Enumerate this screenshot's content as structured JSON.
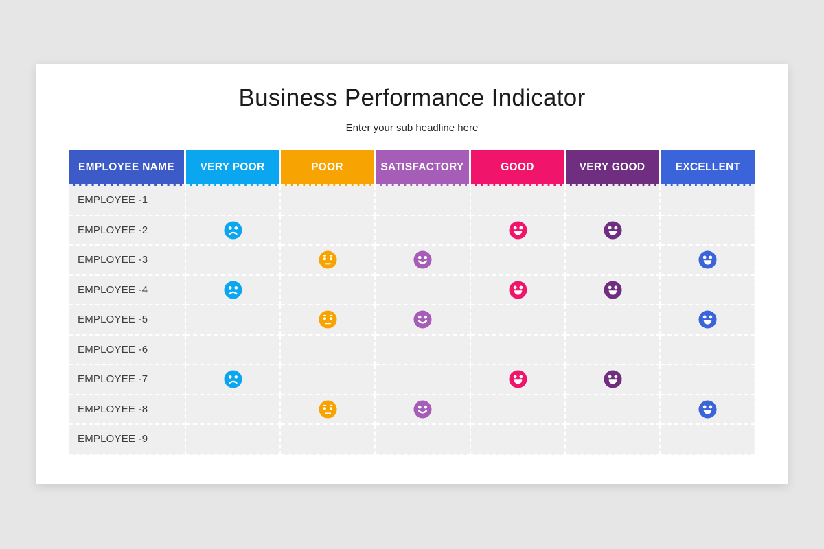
{
  "page": {
    "background_color": "#e7e6e7",
    "card_color": "#ffffff"
  },
  "chart_data": {
    "type": "table",
    "title": "Business Performance Indicator",
    "subtitle": "Enter your sub headline here",
    "legend": {
      "sad": "negative rating face",
      "neutral": "flat rating face",
      "smile": "positive rating face",
      "grin": "very positive rating face"
    },
    "cell_background": "#f0eff0",
    "columns": [
      {
        "label": "EMPLOYEE NAME",
        "color": "#3d5bc8"
      },
      {
        "label": "VERY POOR",
        "color": "#0aa7f0"
      },
      {
        "label": "POOR",
        "color": "#f7a301"
      },
      {
        "label": "SATISFACTORY",
        "color": "#a55db7"
      },
      {
        "label": "GOOD",
        "color": "#f0156b"
      },
      {
        "label": "VERY GOOD",
        "color": "#6f2e80"
      },
      {
        "label": "EXCELLENT",
        "color": "#3c64da"
      }
    ],
    "rows": [
      {
        "label": "EMPLOYEE -1",
        "ratings": [
          null,
          null,
          null,
          null,
          null,
          null
        ]
      },
      {
        "label": "EMPLOYEE -2",
        "ratings": [
          "sad",
          null,
          null,
          "grin",
          "grin",
          null
        ]
      },
      {
        "label": "EMPLOYEE -3",
        "ratings": [
          null,
          "neutral",
          "smile",
          null,
          null,
          "grin"
        ]
      },
      {
        "label": "EMPLOYEE -4",
        "ratings": [
          "sad",
          null,
          null,
          "grin",
          "grin",
          null
        ]
      },
      {
        "label": "EMPLOYEE -5",
        "ratings": [
          null,
          "neutral",
          "smile",
          null,
          null,
          "grin"
        ]
      },
      {
        "label": "EMPLOYEE -6",
        "ratings": [
          null,
          null,
          null,
          null,
          null,
          null
        ]
      },
      {
        "label": "EMPLOYEE -7",
        "ratings": [
          "sad",
          null,
          null,
          "grin",
          "grin",
          null
        ]
      },
      {
        "label": "EMPLOYEE -8",
        "ratings": [
          null,
          "neutral",
          "smile",
          null,
          null,
          "grin"
        ]
      },
      {
        "label": "EMPLOYEE -9",
        "ratings": [
          null,
          null,
          null,
          null,
          null,
          null
        ]
      }
    ]
  }
}
